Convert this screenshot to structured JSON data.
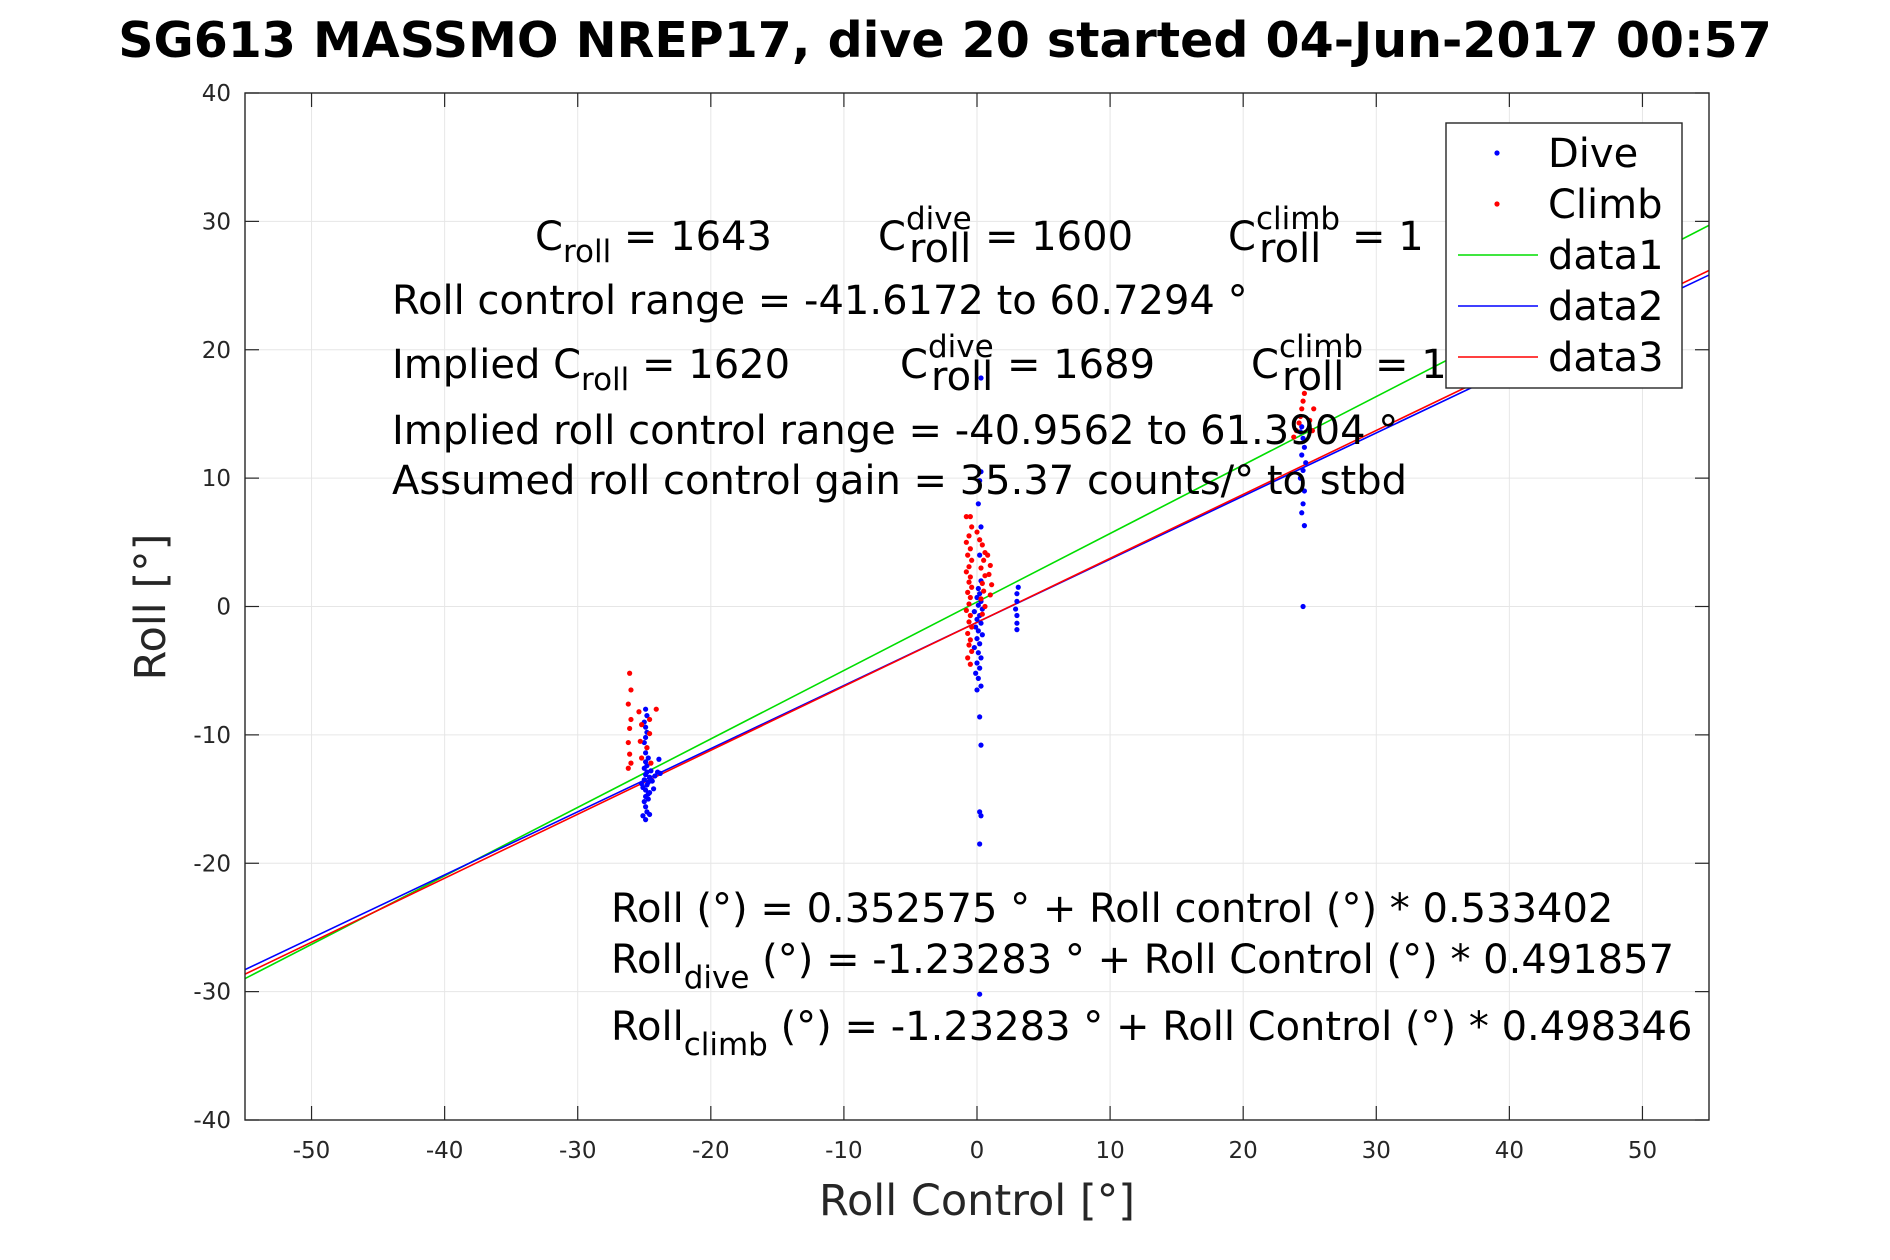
{
  "chart_data": {
    "type": "scatter",
    "title": "SG613 MASSMO NREP17, dive 20 started 04-Jun-2017 00:57",
    "xlabel": "Roll Control [°]",
    "ylabel": "Roll [°]",
    "xlim": [
      -55,
      55
    ],
    "ylim": [
      -40,
      40
    ],
    "xticks": [
      -50,
      -40,
      -30,
      -20,
      -10,
      0,
      10,
      20,
      30,
      40,
      50
    ],
    "yticks": [
      -40,
      -30,
      -20,
      -10,
      0,
      10,
      20,
      30,
      40
    ],
    "grid": true,
    "legend_position": "top-right",
    "colors": {
      "dive": "#0000ff",
      "climb": "#ff0000",
      "data1": "#00dd00",
      "data2": "#0000ff",
      "data3": "#ff0000",
      "axes": "#262626",
      "grid": "#e6e6e6"
    },
    "series": [
      {
        "name": "Dive",
        "kind": "scatter",
        "points": [
          [
            -24.9,
            -16.6
          ],
          [
            -24.8,
            -16.0
          ],
          [
            -24.9,
            -15.6
          ],
          [
            -25.0,
            -15.2
          ],
          [
            -24.7,
            -15.0
          ],
          [
            -24.9,
            -14.8
          ],
          [
            -24.6,
            -14.5
          ],
          [
            -24.9,
            -14.3
          ],
          [
            -25.1,
            -14.1
          ],
          [
            -24.8,
            -13.9
          ],
          [
            -24.7,
            -13.7
          ],
          [
            -25.0,
            -13.5
          ],
          [
            -24.6,
            -13.3
          ],
          [
            -24.9,
            -13.1
          ],
          [
            -24.8,
            -12.9
          ],
          [
            -24.5,
            -12.8
          ],
          [
            -25.0,
            -12.6
          ],
          [
            -24.8,
            -12.4
          ],
          [
            -24.9,
            -12.1
          ],
          [
            -24.7,
            -11.8
          ],
          [
            -24.9,
            -11.4
          ],
          [
            -24.8,
            -11.0
          ],
          [
            -25.0,
            -10.6
          ],
          [
            -24.9,
            -10.2
          ],
          [
            -24.8,
            -9.8
          ],
          [
            -24.9,
            -9.4
          ],
          [
            -25.0,
            -9.0
          ],
          [
            -24.8,
            -8.5
          ],
          [
            -24.9,
            -8.0
          ],
          [
            -24.4,
            -13.6
          ],
          [
            -24.2,
            -13.2
          ],
          [
            -23.8,
            -13.0
          ],
          [
            -24.0,
            -12.9
          ],
          [
            -24.3,
            -14.2
          ],
          [
            -24.6,
            -16.2
          ],
          [
            -25.1,
            -16.3
          ],
          [
            -24.7,
            -14.6
          ],
          [
            -25.2,
            -13.8
          ],
          [
            -24.5,
            -13.5
          ],
          [
            -23.9,
            -11.9
          ],
          [
            0.2,
            -18.5
          ],
          [
            0.3,
            -16.3
          ],
          [
            0.2,
            -16.0
          ],
          [
            0.3,
            -10.8
          ],
          [
            0.2,
            -8.6
          ],
          [
            0.0,
            -6.5
          ],
          [
            0.3,
            -6.2
          ],
          [
            0.1,
            -5.6
          ],
          [
            -0.1,
            -5.2
          ],
          [
            0.2,
            -4.8
          ],
          [
            0.0,
            -4.4
          ],
          [
            0.3,
            -4.0
          ],
          [
            0.1,
            -3.6
          ],
          [
            -0.2,
            -3.2
          ],
          [
            0.2,
            -2.9
          ],
          [
            0.0,
            -2.5
          ],
          [
            0.4,
            -2.2
          ],
          [
            0.1,
            -1.9
          ],
          [
            -0.1,
            -1.6
          ],
          [
            0.3,
            -1.3
          ],
          [
            0.0,
            -1.0
          ],
          [
            0.2,
            -0.7
          ],
          [
            -0.2,
            -0.4
          ],
          [
            0.4,
            -0.2
          ],
          [
            0.1,
            0.1
          ],
          [
            0.3,
            0.4
          ],
          [
            0.0,
            0.7
          ],
          [
            0.2,
            1.0
          ],
          [
            0.1,
            1.4
          ],
          [
            0.3,
            2.0
          ],
          [
            0.2,
            4.0
          ],
          [
            0.3,
            6.2
          ],
          [
            0.1,
            8.0
          ],
          [
            0.2,
            9.8
          ],
          [
            0.3,
            10.5
          ],
          [
            0.3,
            17.8
          ],
          [
            0.2,
            -30.2
          ],
          [
            3.0,
            -1.8
          ],
          [
            3.0,
            -1.3
          ],
          [
            3.0,
            -0.7
          ],
          [
            2.9,
            -0.2
          ],
          [
            3.0,
            0.4
          ],
          [
            3.0,
            1.0
          ],
          [
            3.1,
            1.5
          ],
          [
            24.5,
            0.0
          ],
          [
            24.6,
            6.3
          ],
          [
            24.4,
            7.3
          ],
          [
            24.5,
            8.0
          ],
          [
            24.6,
            9.0
          ],
          [
            24.3,
            10.0
          ],
          [
            24.5,
            10.6
          ],
          [
            24.7,
            11.2
          ],
          [
            24.4,
            11.8
          ],
          [
            24.6,
            12.4
          ],
          [
            24.5,
            13.1
          ],
          [
            24.3,
            13.6
          ],
          [
            24.4,
            14.0
          ]
        ]
      },
      {
        "name": "Climb",
        "kind": "scatter",
        "points": [
          [
            -26.1,
            -5.2
          ],
          [
            -26.0,
            -6.5
          ],
          [
            -26.2,
            -7.6
          ],
          [
            -26.0,
            -8.8
          ],
          [
            -26.1,
            -9.5
          ],
          [
            -26.2,
            -10.6
          ],
          [
            -26.1,
            -11.5
          ],
          [
            -26.0,
            -12.2
          ],
          [
            -26.2,
            -12.6
          ],
          [
            -25.4,
            -8.2
          ],
          [
            -25.2,
            -9.2
          ],
          [
            -25.3,
            -10.5
          ],
          [
            -25.2,
            -11.8
          ],
          [
            -24.6,
            -8.8
          ],
          [
            -24.6,
            -9.9
          ],
          [
            -24.8,
            -11.0
          ],
          [
            -24.5,
            -12.2
          ],
          [
            -24.1,
            -8.0
          ],
          [
            -0.8,
            7.0
          ],
          [
            -0.5,
            7.0
          ],
          [
            -0.4,
            6.2
          ],
          [
            -0.6,
            5.5
          ],
          [
            -0.8,
            5.0
          ],
          [
            -0.5,
            4.5
          ],
          [
            -0.7,
            4.0
          ],
          [
            -0.4,
            3.6
          ],
          [
            -0.6,
            3.1
          ],
          [
            -0.8,
            2.7
          ],
          [
            -0.5,
            2.3
          ],
          [
            -0.6,
            1.9
          ],
          [
            -0.4,
            1.5
          ],
          [
            -0.7,
            1.1
          ],
          [
            -0.5,
            0.7
          ],
          [
            -0.6,
            0.2
          ],
          [
            -0.8,
            -0.3
          ],
          [
            -0.5,
            -0.7
          ],
          [
            -0.6,
            -1.2
          ],
          [
            -0.4,
            -1.6
          ],
          [
            -0.7,
            -2.1
          ],
          [
            -0.5,
            -2.6
          ],
          [
            -0.6,
            -3.0
          ],
          [
            -0.4,
            -3.5
          ],
          [
            -0.7,
            -4.0
          ],
          [
            -0.5,
            -4.5
          ],
          [
            0.0,
            5.8
          ],
          [
            0.2,
            5.2
          ],
          [
            0.4,
            4.8
          ],
          [
            0.6,
            4.2
          ],
          [
            0.5,
            3.6
          ],
          [
            0.3,
            3.0
          ],
          [
            0.6,
            2.4
          ],
          [
            0.4,
            1.8
          ],
          [
            0.5,
            1.2
          ],
          [
            0.3,
            0.6
          ],
          [
            0.6,
            0.0
          ],
          [
            0.4,
            -0.6
          ],
          [
            0.8,
            4.0
          ],
          [
            1.0,
            3.2
          ],
          [
            0.9,
            2.5
          ],
          [
            1.1,
            1.7
          ],
          [
            1.0,
            0.9
          ],
          [
            23.8,
            13.2
          ],
          [
            24.0,
            13.7
          ],
          [
            24.2,
            14.3
          ],
          [
            24.3,
            14.8
          ],
          [
            24.4,
            15.4
          ],
          [
            24.5,
            16.0
          ],
          [
            24.6,
            16.6
          ],
          [
            25.0,
            14.5
          ],
          [
            25.2,
            13.7
          ],
          [
            25.3,
            15.4
          ]
        ]
      },
      {
        "name": "data1",
        "kind": "line",
        "intercept": 0.352575,
        "slope": 0.533402
      },
      {
        "name": "data2",
        "kind": "line",
        "intercept": -1.23283,
        "slope": 0.491857
      },
      {
        "name": "data3",
        "kind": "line",
        "intercept": -1.23283,
        "slope": 0.498346
      }
    ],
    "annotations": {
      "c_roll": {
        "base": "C",
        "sub": "roll",
        "value": " = 1643"
      },
      "c_roll_dive": {
        "base": "C",
        "sup": "dive",
        "sub": "roll",
        "value": " = 1600"
      },
      "c_roll_climb": {
        "base": "C",
        "sup": "climb",
        "sub": "roll",
        "value": " = 1"
      },
      "range": "Roll control range = -41.6172 to 60.7294 °",
      "implied_c_roll": {
        "base": "Implied C",
        "sub": "roll",
        "value": " = 1620"
      },
      "implied_c_roll_dive": {
        "base": "C",
        "sup": "dive",
        "sub": "roll",
        "value": " = 1689"
      },
      "implied_c_roll_climb": {
        "base": "C",
        "sup": "climb",
        "sub": "roll",
        "value": " = 1"
      },
      "implied_range": "Implied roll control range = -40.9562 to 61.3904 °",
      "gain": "Assumed roll control gain = 35.37 counts/° to stbd",
      "fit_all": "Roll (°) = 0.352575 ° + Roll control (°) * 0.533402",
      "fit_dive": {
        "base": "Roll",
        "sub": "dive",
        "value": " (°) = -1.23283 ° + Roll Control (°) * 0.491857"
      },
      "fit_climb": {
        "base": "Roll",
        "sub": "climb",
        "value": " (°) = -1.23283 ° + Roll Control (°) * 0.498346"
      }
    }
  }
}
